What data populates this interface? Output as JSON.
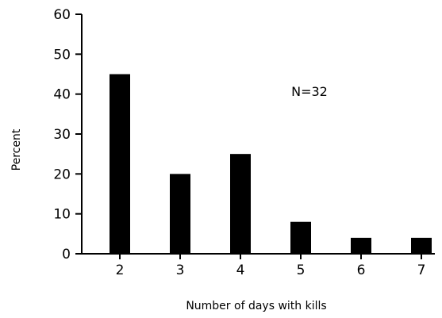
{
  "chart_data": {
    "type": "bar",
    "title": "",
    "xlabel": "Number of days with kills",
    "ylabel": "Percent",
    "categories": [
      "2",
      "3",
      "4",
      "5",
      "6",
      "7"
    ],
    "values": [
      45,
      20,
      25,
      8,
      4,
      4
    ],
    "ylim": [
      0,
      60
    ],
    "yticks": [
      "0",
      "10",
      "20",
      "30",
      "40",
      "50",
      "60"
    ],
    "annotation": "N=32",
    "grid": false,
    "legend": "none",
    "bar_color": "#000000"
  }
}
